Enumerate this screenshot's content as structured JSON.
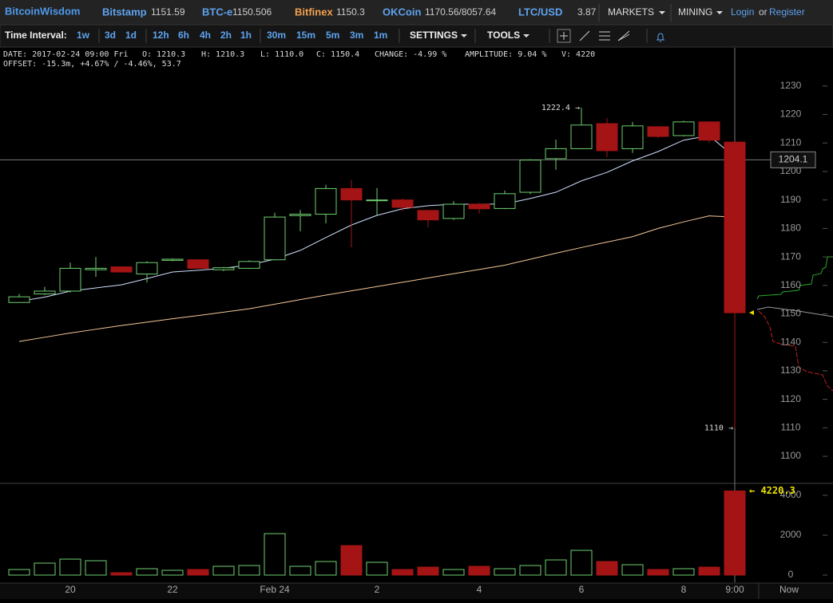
{
  "header": {
    "logo": "BitcoinWisdom",
    "markets": [
      {
        "name": "Bitstamp",
        "price": "1151.59"
      },
      {
        "name": "BTC-e",
        "price": "1150.506"
      },
      {
        "name": "Bitfinex",
        "price": "1150.3"
      },
      {
        "name": "OKCoin",
        "price": "1170.56/8057.64"
      },
      {
        "name": "LTC/USD",
        "price": "3.87"
      }
    ],
    "menus": [
      "MARKETS",
      "MINING"
    ],
    "login": "Login",
    "or": "or",
    "register": "Register"
  },
  "toolbar": {
    "label": "Time Interval:",
    "intervals": [
      "1w",
      "3d",
      "1d",
      "12h",
      "6h",
      "4h",
      "2h",
      "1h",
      "30m",
      "15m",
      "5m",
      "3m",
      "1m"
    ],
    "active": "30m",
    "settings": "SETTINGS",
    "tools": "TOOLS"
  },
  "info": {
    "line1": [
      "DATE: 2017-02-24 09:00 Fri",
      "O: 1210.3",
      "H: 1210.3",
      "L: 1110.0",
      "C: 1150.4",
      "CHANGE: -4.99 %",
      "AMPLITUDE: 9.04 %",
      "V: 4220"
    ],
    "line2": "OFFSET: -15.3m, +4.67% / -4.46%, 53.7"
  },
  "chart_data": {
    "type": "candlestick",
    "categories": [
      null,
      null,
      "20",
      null,
      null,
      null,
      "22",
      null,
      null,
      null,
      "Feb 24",
      null,
      null,
      null,
      "2",
      null,
      null,
      null,
      "4",
      null,
      null,
      null,
      "6",
      null,
      null,
      null,
      "8",
      null,
      "9:00"
    ],
    "open": [
      1154,
      1157,
      1158,
      1165.5,
      1166.5,
      1164,
      1168.8,
      1169,
      1165.5,
      1166,
      1169,
      1184.5,
      1185,
      1194,
      1189.8,
      1190,
      1186.3,
      1183.5,
      1188.5,
      1187,
      1192.7,
      1204.5,
      1208,
      1216.8,
      1208,
      1215.7,
      1212.6,
      1217.4,
      1210.3
    ],
    "high": [
      1157,
      1159.5,
      1168,
      1170,
      1166.5,
      1168.5,
      1169.5,
      1169.2,
      1166.5,
      1168.8,
      1185.5,
      1186.5,
      1195.3,
      1197,
      1194.2,
      1190.5,
      1186.5,
      1189.6,
      1189,
      1193.3,
      1204.3,
      1211.2,
      1222.4,
      1218.8,
      1217.4,
      1216,
      1217.8,
      1217.6,
      1210.3
    ],
    "low": [
      1154,
      1156.6,
      1157.5,
      1163,
      1164.5,
      1161,
      1168.5,
      1165.8,
      1165,
      1165.8,
      1168.8,
      1179,
      1181.8,
      1173.4,
      1184.6,
      1186,
      1180.4,
      1183,
      1185.2,
      1186.8,
      1192,
      1200.6,
      1207.8,
      1205,
      1206.5,
      1211.8,
      1212.3,
      1210,
      1110
    ],
    "close": [
      1156,
      1158,
      1166,
      1166,
      1164.7,
      1168,
      1169.2,
      1166,
      1166.2,
      1168.4,
      1184,
      1185,
      1194,
      1190,
      1190,
      1187.4,
      1183,
      1188.5,
      1186.9,
      1192.2,
      1204,
      1208,
      1216.3,
      1207.3,
      1216,
      1212.3,
      1217.4,
      1211,
      1150.4
    ],
    "volume": [
      280,
      600,
      800,
      720,
      120,
      320,
      240,
      280,
      440,
      480,
      2080,
      440,
      680,
      1480,
      640,
      280,
      400,
      280,
      440,
      320,
      480,
      760,
      1240,
      680,
      520,
      280,
      320,
      400,
      4220.3
    ],
    "moving_averages": [
      {
        "color": "#cfe0ff",
        "values": [
          1154.4,
          1155.9,
          1158,
          1159.1,
          1160.2,
          1162.4,
          1164.7,
          1165.3,
          1166,
          1167.2,
          1169.2,
          1172.3,
          1176.8,
          1181.2,
          1184.6,
          1186.9,
          1188,
          1188.5,
          1188.5,
          1188.6,
          1190.5,
          1192.7,
          1196.7,
          1199.7,
          1203.7,
          1207,
          1211,
          1212.6,
          1205
        ]
      },
      {
        "color": "#f3c896",
        "values": [
          1140.3,
          1141.8,
          1143.3,
          1144.6,
          1145.9,
          1147.1,
          1148.3,
          1149.4,
          1150.6,
          1151.8,
          1153.4,
          1155,
          1156.6,
          1158.1,
          1159.6,
          1161.1,
          1162.6,
          1164.1,
          1165.6,
          1167.1,
          1169.2,
          1171.3,
          1173.3,
          1175.2,
          1177.1,
          1180,
          1182.3,
          1184.4,
          1184
        ]
      }
    ],
    "up_color": "#6fcf6f",
    "down_color": "#a51414",
    "ylim": [
      1090.5,
      1243.4
    ],
    "yticks": [
      1100,
      1110,
      1120,
      1130,
      1140,
      1150,
      1160,
      1170,
      1180,
      1190,
      1200,
      1210,
      1220,
      1230
    ],
    "vlim": [
      -360,
      4560
    ],
    "vticks": [
      0,
      2000,
      4000
    ],
    "crosshair_y": 1204.1,
    "high_label": "1222.4 →",
    "low_label": "1110 →",
    "volume_label": "← 4220.3",
    "now_label": "Now"
  }
}
